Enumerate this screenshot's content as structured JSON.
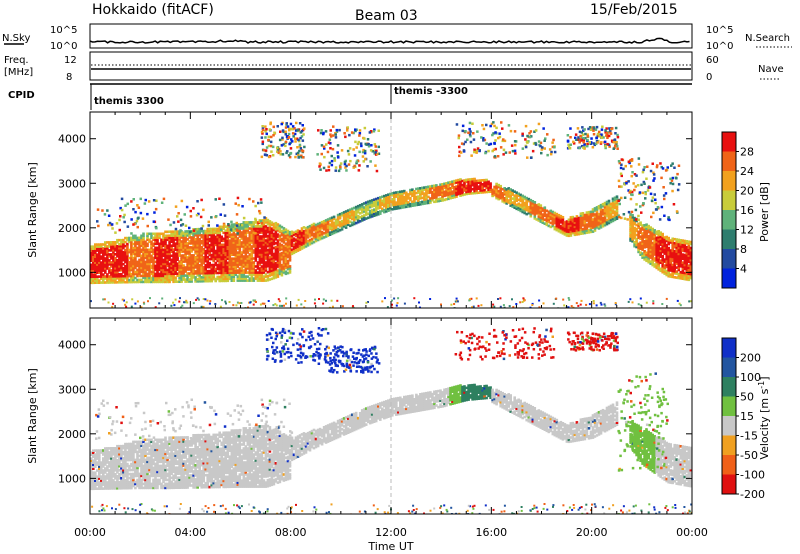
{
  "header": {
    "title": "Hokkaido (fitACF)",
    "beam": "Beam 03",
    "date": "15/Feb/2015"
  },
  "noise_panel": {
    "left_label": "N.Sky",
    "right_label": "N.Search",
    "left_ticks": [
      "10^5",
      "10^0"
    ],
    "right_ticks": [
      "10^5",
      "10^0"
    ]
  },
  "freq_panel": {
    "left_label_1": "Freq.",
    "left_label_2": "[MHz]",
    "right_label": "Nave",
    "left_ticks": [
      "12",
      "8"
    ],
    "right_ticks": [
      "60",
      "0"
    ]
  },
  "cpid": {
    "label": "CPID",
    "segments": [
      {
        "text": "themis 3300",
        "start_hour": 0
      },
      {
        "text": "themis -3300",
        "start_hour": 12
      }
    ]
  },
  "chart_data": [
    {
      "type": "heatmap",
      "name": "power",
      "ylabel": "Slant Range [km]",
      "yticks": [
        1000,
        2000,
        3000,
        4000
      ],
      "ylim": [
        200,
        4600
      ],
      "xlim": [
        0,
        24
      ],
      "colorbar_label": "Power [dB]",
      "colorbar_ticks": [
        "4",
        "8",
        "12",
        "16",
        "20",
        "24",
        "28"
      ],
      "colors": [
        "#0022dd",
        "#224aa0",
        "#2e7d6e",
        "#5fb27a",
        "#c8cc3a",
        "#f2a11e",
        "#f06418",
        "#e81010"
      ],
      "regions": [
        {
          "x": [
            0,
            1,
            2,
            3,
            4,
            5,
            6,
            7,
            8
          ],
          "y_low": [
            750,
            760,
            770,
            770,
            780,
            790,
            800,
            800,
            1000
          ],
          "y_high": [
            1600,
            1700,
            1850,
            1900,
            1950,
            2000,
            2100,
            2200,
            1900
          ],
          "level": [
            7,
            7,
            6,
            7,
            6,
            7,
            6,
            7,
            6
          ]
        },
        {
          "x": [
            8,
            9,
            10,
            11,
            12,
            13,
            14,
            15,
            16
          ],
          "y_low": [
            1400,
            1700,
            1950,
            2200,
            2400,
            2500,
            2600,
            2750,
            2800
          ],
          "y_high": [
            1900,
            2100,
            2350,
            2600,
            2800,
            2900,
            3000,
            3100,
            3050
          ],
          "level": [
            7,
            6,
            5,
            4,
            5,
            5,
            6,
            7,
            7
          ]
        },
        {
          "x": [
            16,
            17,
            18,
            19,
            20,
            21
          ],
          "y_low": [
            2700,
            2400,
            2100,
            1800,
            1900,
            2200
          ],
          "y_high": [
            3000,
            2800,
            2500,
            2200,
            2400,
            2700
          ],
          "level": [
            6,
            5,
            6,
            7,
            6,
            5
          ]
        },
        {
          "x": [
            21.5,
            22,
            23,
            24
          ],
          "y_low": [
            1700,
            1300,
            900,
            800
          ],
          "y_high": [
            2300,
            2100,
            1800,
            1700
          ],
          "level": [
            5,
            6,
            7,
            7
          ]
        }
      ],
      "scatter_regions": [
        {
          "x": [
            6.8,
            8.5
          ],
          "y": [
            3600,
            4400
          ]
        },
        {
          "x": [
            9.0,
            11.5
          ],
          "y": [
            3300,
            4300
          ]
        },
        {
          "x": [
            14.5,
            18.5
          ],
          "y": [
            3600,
            4400
          ]
        },
        {
          "x": [
            19.0,
            21.0
          ],
          "y": [
            3800,
            4300
          ]
        },
        {
          "x": [
            0.2,
            7.0
          ],
          "y": [
            1900,
            2700
          ]
        },
        {
          "x": [
            21.0,
            23.5
          ],
          "y": [
            2200,
            3600
          ]
        }
      ]
    },
    {
      "type": "heatmap",
      "name": "velocity",
      "ylabel": "Slant Range [km]",
      "yticks": [
        1000,
        2000,
        3000,
        4000
      ],
      "ylim": [
        200,
        4600
      ],
      "xlim": [
        0,
        24
      ],
      "colorbar_label": "Velocity [m s^-1]",
      "colorbar_ticks": [
        "200",
        "100",
        "50",
        "15",
        "-15",
        "-50",
        "-100",
        "-200"
      ],
      "colors": [
        "#1030c8",
        "#2255a0",
        "#2e8060",
        "#70c040",
        "#c8c8c8",
        "#f0a020",
        "#f06018",
        "#e01010"
      ],
      "regions": [
        {
          "x": [
            0,
            1,
            2,
            3,
            4,
            5,
            6,
            7,
            8
          ],
          "y_low": [
            750,
            760,
            770,
            770,
            780,
            790,
            800,
            800,
            1000
          ],
          "y_high": [
            1600,
            1700,
            1850,
            1900,
            1950,
            2000,
            2100,
            2200,
            1900
          ],
          "level": [
            4,
            4,
            4,
            4,
            4,
            4,
            4,
            4,
            4
          ]
        },
        {
          "x": [
            8,
            9,
            10,
            11,
            12,
            13,
            14,
            15,
            16
          ],
          "y_low": [
            1400,
            1700,
            1950,
            2200,
            2400,
            2500,
            2600,
            2750,
            2800
          ],
          "y_high": [
            1900,
            2100,
            2350,
            2600,
            2800,
            2900,
            3000,
            3100,
            3050
          ],
          "level": [
            4,
            4,
            4,
            4,
            4,
            4,
            4,
            2,
            2
          ]
        },
        {
          "x": [
            16,
            17,
            18,
            19,
            20,
            21
          ],
          "y_low": [
            2700,
            2400,
            2100,
            1800,
            1900,
            2200
          ],
          "y_high": [
            3000,
            2800,
            2500,
            2200,
            2400,
            2700
          ],
          "level": [
            4,
            4,
            4,
            4,
            4,
            4
          ]
        },
        {
          "x": [
            21.5,
            22,
            23,
            24
          ],
          "y_low": [
            1700,
            1300,
            900,
            800
          ],
          "y_high": [
            2300,
            2100,
            1800,
            1700
          ],
          "level": [
            3,
            3,
            4,
            4
          ]
        }
      ],
      "scatter_regions": [
        {
          "x": [
            7.0,
            9.5
          ],
          "y": [
            3600,
            4400
          ],
          "level": 0
        },
        {
          "x": [
            9.5,
            11.5
          ],
          "y": [
            3400,
            4000
          ],
          "level": 0
        },
        {
          "x": [
            14.5,
            18.5
          ],
          "y": [
            3700,
            4400
          ],
          "level": 7
        },
        {
          "x": [
            19.0,
            21.0
          ],
          "y": [
            3900,
            4300
          ],
          "level": 7
        },
        {
          "x": [
            21.0,
            23.0
          ],
          "y": [
            1200,
            3400
          ],
          "level": 3
        },
        {
          "x": [
            0.2,
            8.0
          ],
          "y": [
            1900,
            2800
          ],
          "level": 4
        }
      ]
    }
  ],
  "time_axis": {
    "xlabel": "Time UT",
    "ticks": [
      "00:00",
      "04:00",
      "08:00",
      "12:00",
      "16:00",
      "20:00",
      "00:00"
    ],
    "tick_hours": [
      0,
      4,
      8,
      12,
      16,
      20,
      24
    ]
  }
}
